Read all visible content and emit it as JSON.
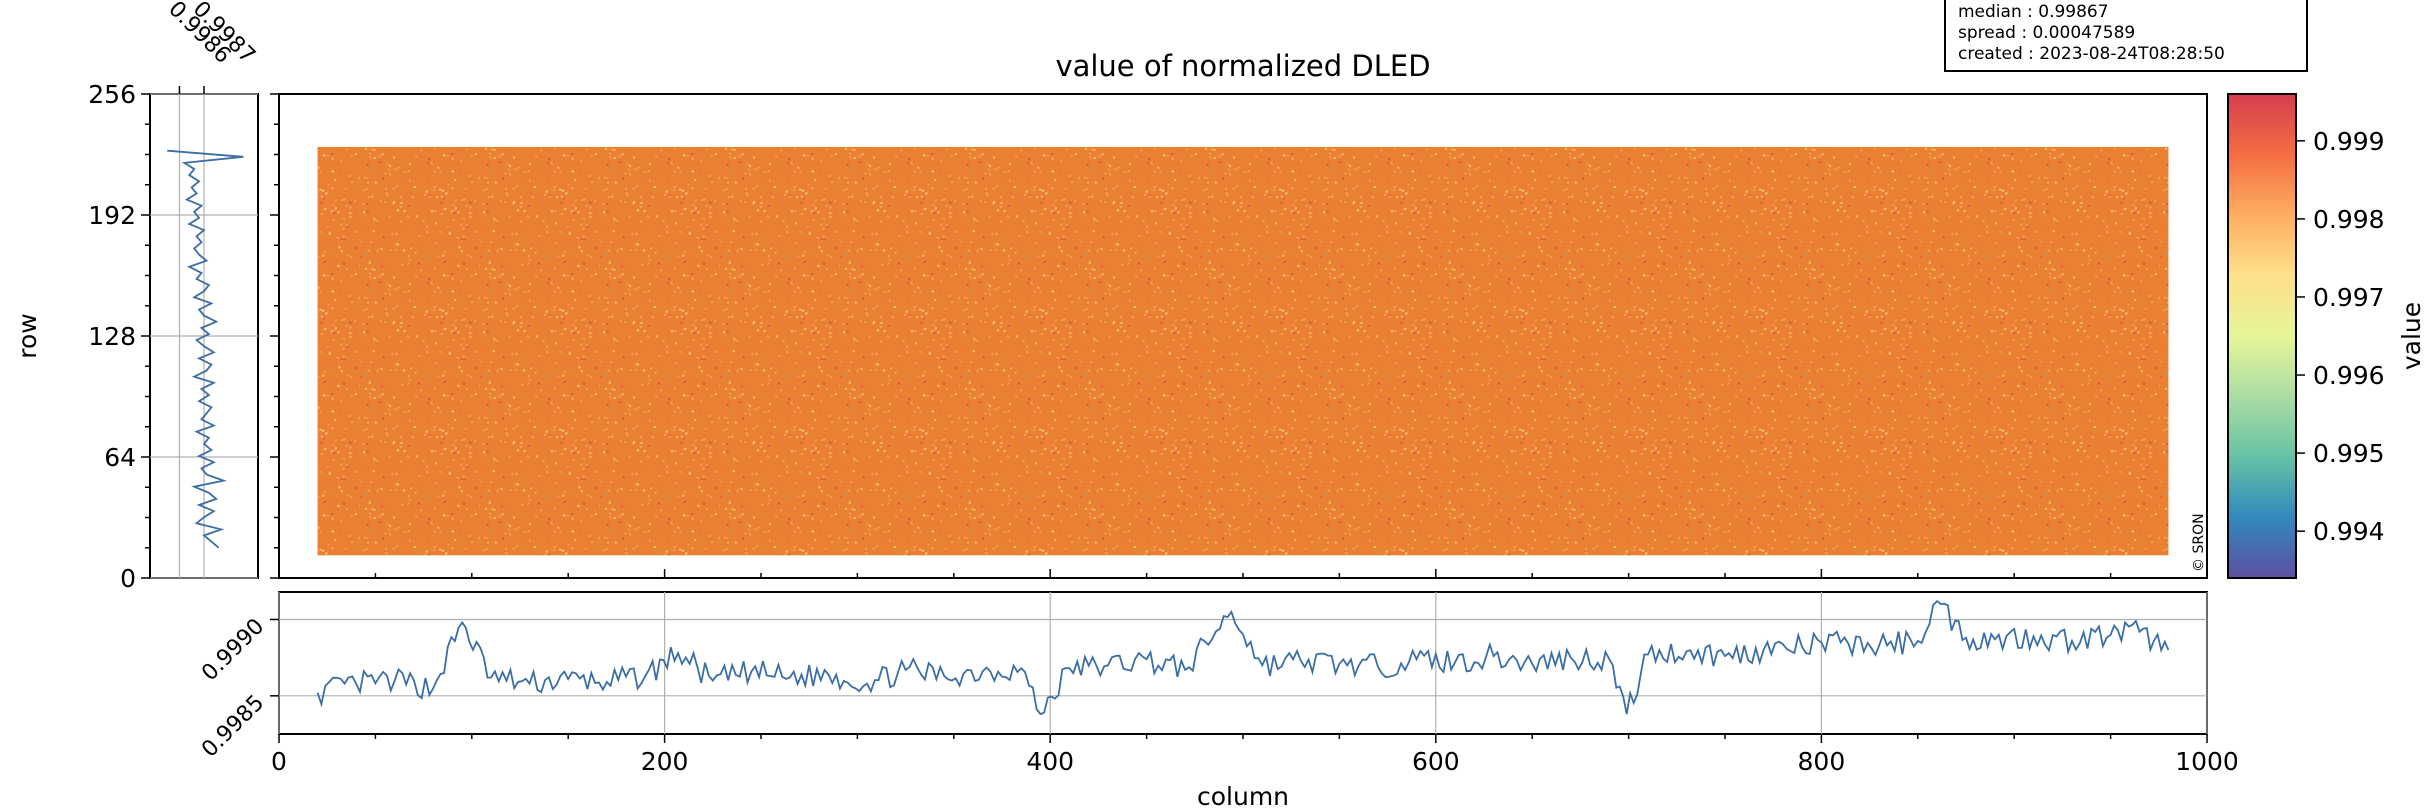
{
  "info": {
    "median": "median : 0.99867",
    "spread": "spread : 0.00047589",
    "created": "created : 2023-08-24T08:28:50"
  },
  "colors": {
    "line": "#3b6ea5",
    "grid": "#b0b0b0",
    "image": "#e98032",
    "colormap": [
      "#5e4fa2",
      "#3288bd",
      "#66c2a5",
      "#abdda4",
      "#e6f598",
      "#fee08b",
      "#fdae61",
      "#f46d43",
      "#d53e4f"
    ]
  },
  "chart_data": [
    {
      "type": "heatmap",
      "title": "value of normalized DLED",
      "xlabel": "",
      "ylabel": "row",
      "xlim": [
        0,
        1000
      ],
      "ylim": [
        0,
        256
      ],
      "yticks": [
        "0",
        "64",
        "128",
        "192",
        "256"
      ],
      "data_extent": {
        "columns": [
          20,
          980
        ],
        "rows": [
          12,
          228
        ]
      },
      "watermark": "© SRON",
      "colorbar": {
        "label": "value",
        "range": [
          0.9934,
          0.9996
        ],
        "ticks": [
          "0.994",
          "0.995",
          "0.996",
          "0.997",
          "0.998",
          "0.999"
        ]
      }
    },
    {
      "type": "line",
      "name": "row profile (side panel)",
      "xlim": [
        0.99848,
        0.99892
      ],
      "xticks": [
        "0.9986",
        "0.9987"
      ],
      "ylim": [
        0,
        256
      ],
      "y_range": [
        16,
        226
      ],
      "x": [
        0.99876,
        0.99873,
        0.9987,
        0.99877,
        0.99867,
        0.9987,
        0.99874,
        0.99868,
        0.99875,
        0.99872,
        0.99866,
        0.99878,
        0.99871,
        0.99869,
        0.99874,
        0.99868,
        0.99873,
        0.9987,
        0.99872,
        0.99867,
        0.99874,
        0.99869,
        0.99871,
        0.99873,
        0.99868,
        0.99872,
        0.99869,
        0.99874,
        0.99866,
        0.99871,
        0.99873,
        0.99868,
        0.99874,
        0.9987,
        0.99867,
        0.99872,
        0.99869,
        0.99875,
        0.9987,
        0.99868,
        0.99873,
        0.99866,
        0.9987,
        0.99872,
        0.99867,
        0.99869,
        0.99864,
        0.99871,
        0.99868,
        0.99866,
        0.99869,
        0.99867,
        0.9987,
        0.99864,
        0.99868,
        0.99866,
        0.99869,
        0.99863,
        0.99867,
        0.99865,
        0.99868,
        0.99864,
        0.99866,
        0.99862,
        0.99886,
        0.99855
      ]
    },
    {
      "type": "line",
      "name": "column profile (bottom panel)",
      "xlabel": "column",
      "xlim": [
        0,
        1000
      ],
      "xticks": [
        "0",
        "200",
        "400",
        "600",
        "800",
        "1000"
      ],
      "ylim": [
        0.99825,
        0.99918
      ],
      "yticks": [
        "0.9985",
        "0.9990"
      ],
      "x": [
        20,
        40,
        60,
        80,
        95,
        110,
        130,
        150,
        170,
        190,
        207,
        225,
        245,
        265,
        285,
        305,
        325,
        345,
        365,
        385,
        395,
        410,
        430,
        450,
        470,
        494,
        510,
        530,
        550,
        570,
        590,
        610,
        630,
        650,
        670,
        690,
        699,
        710,
        730,
        750,
        770,
        790,
        810,
        830,
        850,
        860,
        875,
        890,
        910,
        930,
        950,
        965,
        980
      ],
      "values": [
        0.99852,
        0.99858,
        0.9986,
        0.99855,
        0.99898,
        0.99862,
        0.99858,
        0.99861,
        0.99859,
        0.99863,
        0.99878,
        0.9986,
        0.99866,
        0.99862,
        0.99864,
        0.99858,
        0.99867,
        0.99863,
        0.99866,
        0.99868,
        0.99838,
        0.99868,
        0.9987,
        0.99874,
        0.99867,
        0.99905,
        0.9987,
        0.99873,
        0.99871,
        0.99869,
        0.99874,
        0.99872,
        0.99876,
        0.99871,
        0.99875,
        0.99874,
        0.99838,
        0.99877,
        0.99879,
        0.99876,
        0.9988,
        0.99882,
        0.99885,
        0.99883,
        0.99886,
        0.99912,
        0.99888,
        0.99887,
        0.99889,
        0.99886,
        0.9989,
        0.99892,
        0.9988
      ]
    }
  ]
}
